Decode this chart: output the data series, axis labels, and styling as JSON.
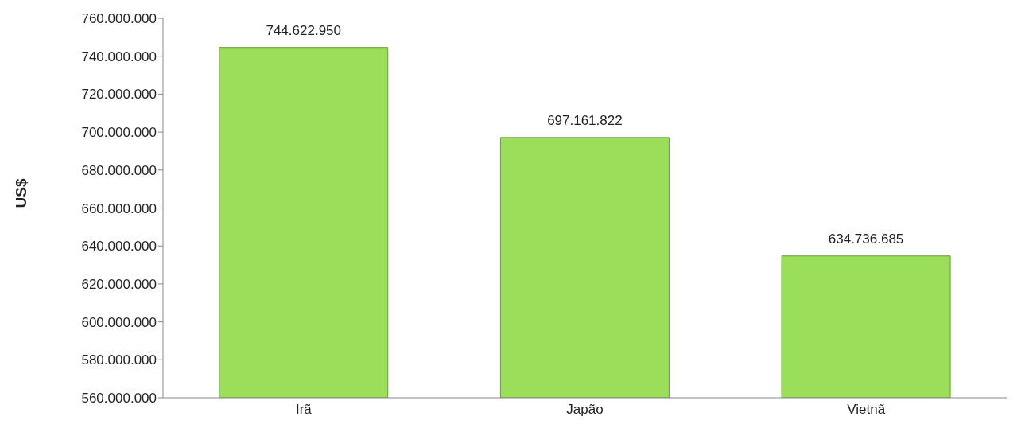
{
  "chart_data": {
    "type": "bar",
    "ylabel": "US$",
    "categories": [
      "Irã",
      "Japão",
      "Vietnã"
    ],
    "values": [
      744622950,
      697161822,
      634736685
    ],
    "value_labels": [
      "744.622.950",
      "697.161.822",
      "634.736.685"
    ],
    "color": "#9bde5a",
    "ylim": [
      560000000,
      760000000
    ],
    "yticks": [
      {
        "value": 560000000,
        "label": "560.000.000"
      },
      {
        "value": 580000000,
        "label": "580.000.000"
      },
      {
        "value": 600000000,
        "label": "600.000.000"
      },
      {
        "value": 620000000,
        "label": "620.000.000"
      },
      {
        "value": 640000000,
        "label": "640.000.000"
      },
      {
        "value": 660000000,
        "label": "660.000.000"
      },
      {
        "value": 680000000,
        "label": "680.000.000"
      },
      {
        "value": 700000000,
        "label": "700.000.000"
      },
      {
        "value": 720000000,
        "label": "720.000.000"
      },
      {
        "value": 740000000,
        "label": "740.000.000"
      },
      {
        "value": 760000000,
        "label": "760.000.000"
      }
    ],
    "grid": false
  }
}
